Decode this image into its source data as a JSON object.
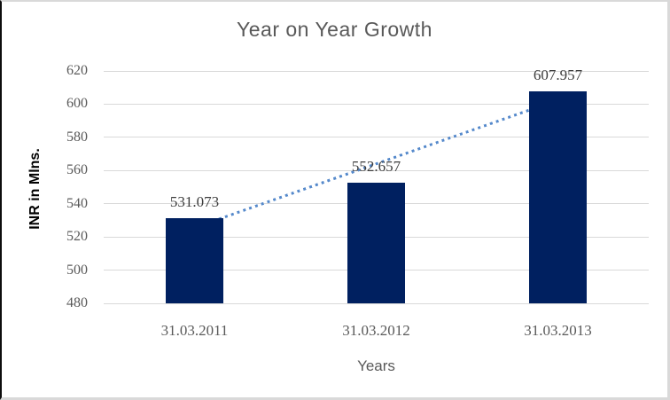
{
  "chart_data": {
    "type": "bar",
    "title": "Year on Year Growth",
    "categories": [
      "31.03.2011",
      "31.03.2012",
      "31.03.2013"
    ],
    "values": [
      531.073,
      552.657,
      607.957
    ],
    "data_labels": [
      "531.073",
      "552.657",
      "607.957"
    ],
    "xlabel": "Years",
    "ylabel": "INR in Mlns.",
    "ylim": [
      480,
      620
    ],
    "yticks": [
      480,
      500,
      520,
      540,
      560,
      580,
      600,
      620
    ],
    "grid": true,
    "legend": false,
    "trendline": {
      "type": "linear",
      "style": "dotted",
      "color": "#5589cb"
    },
    "colors": {
      "bar": "#002060",
      "gridline": "#d9d9d9",
      "title_text": "#595959",
      "axis_text": "#595959",
      "ylabel_text": "#000000",
      "data_label_text": "#3d3d3d",
      "frame_left": "#0d0d0d",
      "frame_edge": "#d9d9d9",
      "background": "#ffffff"
    }
  }
}
